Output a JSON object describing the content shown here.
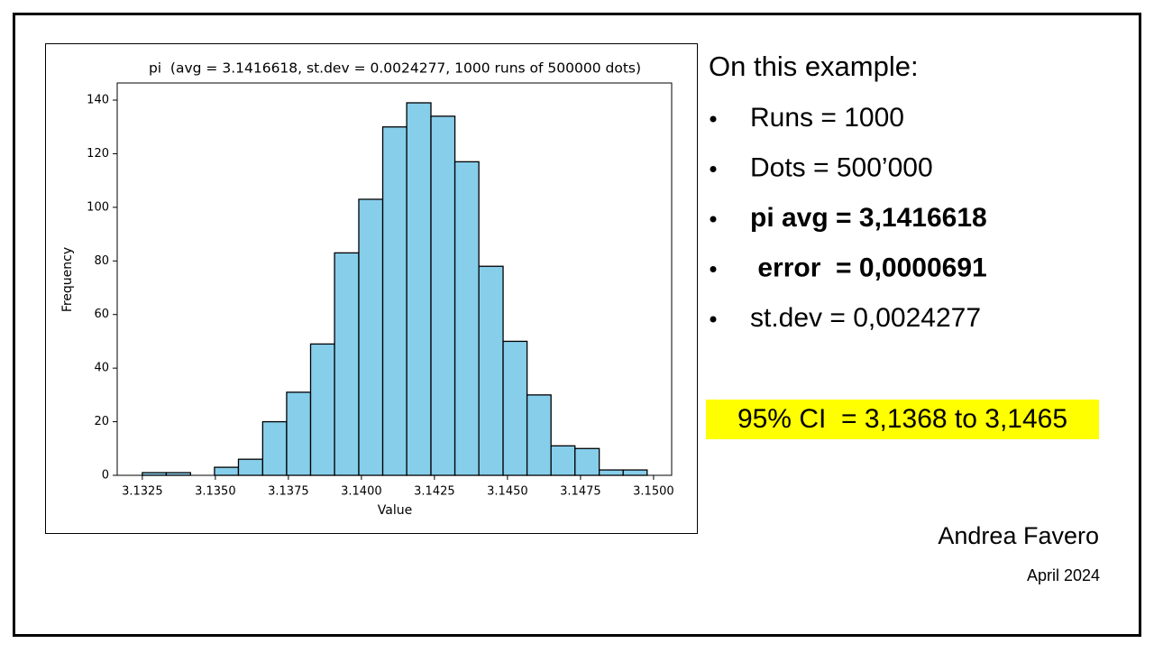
{
  "chart_data": {
    "type": "histogram",
    "title": "pi  (avg = 3.1416618, st.dev = 0.0024277, 1000 runs of 500000 dots)",
    "x_label": "Value",
    "y_label": "Frequency",
    "bins": [
      3.1325,
      3.13332,
      3.13415,
      3.13497,
      3.13579,
      3.13662,
      3.13744,
      3.13826,
      3.13908,
      3.13991,
      3.14073,
      3.14155,
      3.14238,
      3.1432,
      3.14402,
      3.14485,
      3.14567,
      3.14649,
      3.14731,
      3.14814,
      3.14896,
      3.14978
    ],
    "counts": [
      1,
      1,
      0,
      3,
      6,
      20,
      31,
      49,
      83,
      103,
      130,
      139,
      134,
      117,
      78,
      50,
      30,
      11,
      10,
      2,
      2
    ],
    "color": "#87ceeb",
    "edge_color": "#000000",
    "xlim": [
      3.13164,
      3.15062
    ],
    "ylim": [
      0,
      146.4
    ],
    "xticks": [
      3.1325,
      {
        "value": 3.135,
        "label": "3.1350"
      },
      3.1375,
      {
        "value": 3.14,
        "label": "3.1400"
      },
      3.1425,
      {
        "value": 3.145,
        "label": "3.1450"
      },
      3.1475,
      {
        "value": 3.15,
        "label": "3.1500"
      }
    ],
    "yticks": [
      0,
      20,
      40,
      60,
      80,
      100,
      120,
      140
    ]
  },
  "notes": {
    "heading": "On this example:",
    "items": [
      {
        "text": "Runs = 1000",
        "bold": false
      },
      {
        "text": "Dots = 500’000",
        "bold": false
      },
      {
        "text": "pi avg = 3,1416618",
        "bold": true
      },
      {
        "text": " error  = 0,0000691",
        "bold": true
      },
      {
        "text": "st.dev = 0,0024277",
        "bold": false
      }
    ],
    "highlight": "95% CI  = 3,1368 to 3,1465",
    "highlight_color": "#ffff00"
  },
  "footer": {
    "author": "Andrea Favero",
    "date": "April 2024"
  }
}
